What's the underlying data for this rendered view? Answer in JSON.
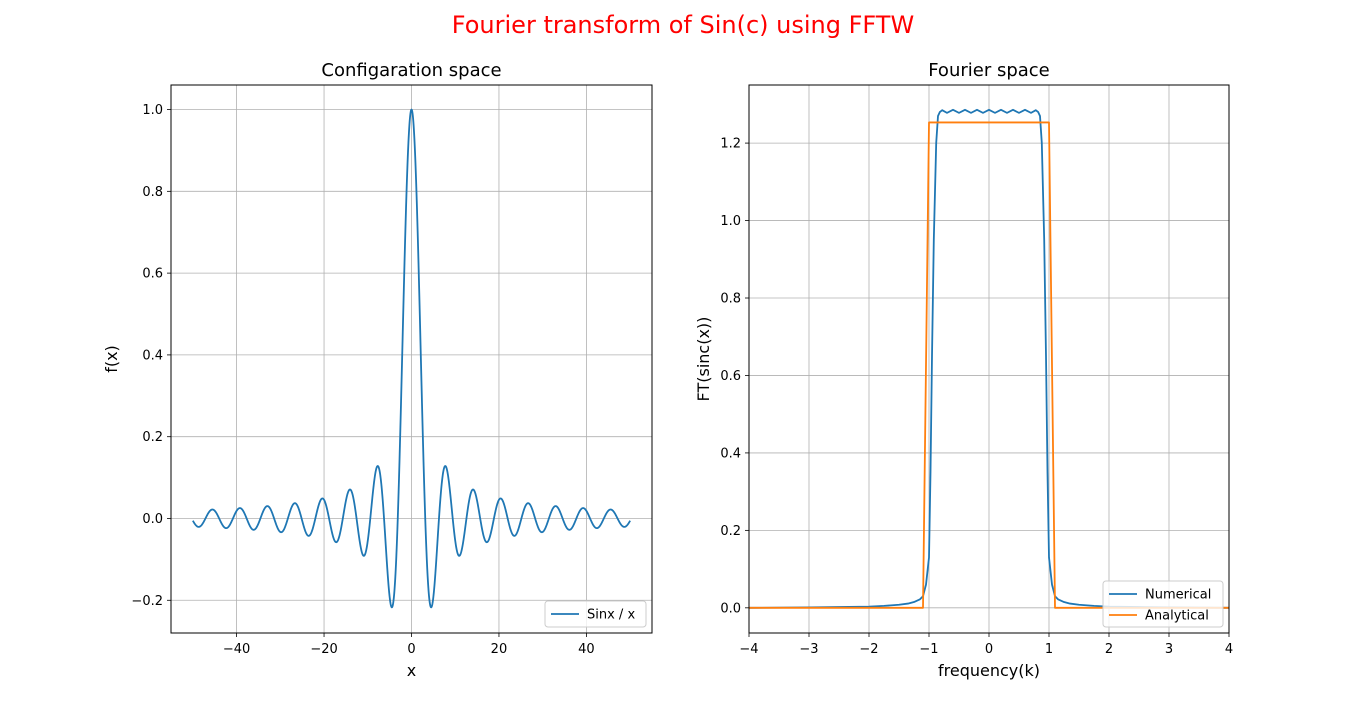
{
  "figure": {
    "title": "Fourier transform of Sin(c) using FFTW",
    "title_color": "#ff0000"
  },
  "chart_data": [
    {
      "type": "line",
      "title": "Configaration space",
      "xlabel": "x",
      "ylabel": "f(x)",
      "xlim": [
        -55,
        55
      ],
      "ylim": [
        -0.28,
        1.06
      ],
      "xticks": [
        -40,
        -20,
        0,
        20,
        40
      ],
      "xtick_labels": [
        "−40",
        "−20",
        "0",
        "20",
        "40"
      ],
      "yticks": [
        -0.2,
        0.0,
        0.2,
        0.4,
        0.6,
        0.8,
        1.0
      ],
      "ytick_labels": [
        "−0.2",
        "0.0",
        "0.2",
        "0.4",
        "0.6",
        "0.8",
        "1.0"
      ],
      "grid": true,
      "legend_position": "lower-right",
      "series": [
        {
          "name": "Sinx / x",
          "color": "#1f77b4",
          "function": "sin(x)/x",
          "x_range": [
            -50,
            50
          ]
        }
      ]
    },
    {
      "type": "line",
      "title": "Fourier space",
      "xlabel": "frequency(k)",
      "ylabel": "FT(sinc(x))",
      "xlim": [
        -4,
        4
      ],
      "ylim": [
        -0.065,
        1.35
      ],
      "xticks": [
        -4,
        -3,
        -2,
        -1,
        0,
        1,
        2,
        3,
        4
      ],
      "xtick_labels": [
        "−4",
        "−3",
        "−2",
        "−1",
        "0",
        "1",
        "2",
        "3",
        "4"
      ],
      "yticks": [
        0.0,
        0.2,
        0.4,
        0.6,
        0.8,
        1.0,
        1.2
      ],
      "ytick_labels": [
        "0.0",
        "0.2",
        "0.4",
        "0.6",
        "0.8",
        "1.0",
        "1.2"
      ],
      "grid": true,
      "legend_position": "lower-right",
      "series": [
        {
          "name": "Numerical",
          "color": "#1f77b4",
          "x": [
            -4.0,
            -3.0,
            -2.5,
            -2.0,
            -1.75,
            -1.5,
            -1.35,
            -1.25,
            -1.15,
            -1.1,
            -1.05,
            -1.0,
            -0.975,
            -0.95,
            -0.92,
            -0.88,
            -0.85,
            -0.82,
            -0.78,
            -0.7,
            -0.6,
            -0.5,
            -0.4,
            -0.3,
            -0.2,
            -0.1,
            0.0,
            0.1,
            0.2,
            0.3,
            0.4,
            0.5,
            0.6,
            0.7,
            0.78,
            0.82,
            0.85,
            0.88,
            0.92,
            0.95,
            0.975,
            1.0,
            1.05,
            1.1,
            1.15,
            1.25,
            1.35,
            1.5,
            1.75,
            2.0,
            2.5,
            3.0,
            4.0
          ],
          "y": [
            0.0,
            0.001,
            0.002,
            0.003,
            0.005,
            0.008,
            0.011,
            0.015,
            0.022,
            0.03,
            0.06,
            0.13,
            0.35,
            0.65,
            0.95,
            1.2,
            1.27,
            1.28,
            1.285,
            1.278,
            1.286,
            1.278,
            1.286,
            1.278,
            1.286,
            1.278,
            1.286,
            1.278,
            1.286,
            1.278,
            1.286,
            1.278,
            1.286,
            1.278,
            1.285,
            1.28,
            1.27,
            1.2,
            0.95,
            0.65,
            0.35,
            0.13,
            0.06,
            0.03,
            0.022,
            0.015,
            0.011,
            0.008,
            0.005,
            0.003,
            0.002,
            0.001,
            0.0
          ]
        },
        {
          "name": "Analytical",
          "color": "#ff7f0e",
          "x": [
            -4.0,
            -1.1,
            -1.0,
            1.0,
            1.1,
            4.0
          ],
          "y": [
            0.0,
            0.0,
            1.2533,
            1.2533,
            0.0,
            0.0
          ]
        }
      ]
    }
  ]
}
